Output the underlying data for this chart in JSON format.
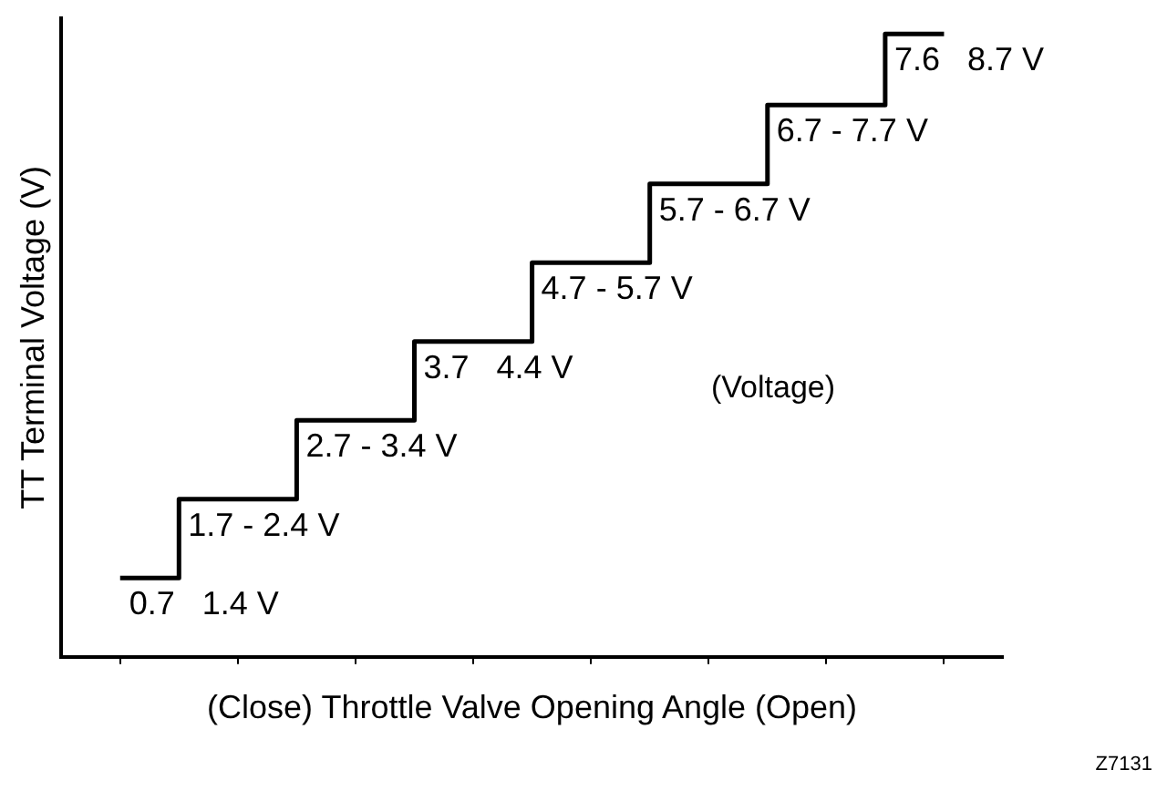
{
  "chart_data": {
    "type": "step",
    "ylim": [
      -0.3,
      7.8
    ],
    "tick_labels": false,
    "categories": [
      null,
      null,
      null,
      null,
      null,
      null,
      null,
      null
    ],
    "values": [
      0.7,
      1.7,
      2.7,
      3.7,
      4.7,
      5.7,
      6.7,
      7.6
    ],
    "value_labels": [
      "0.7   1.4 V",
      "1.7 - 2.4 V",
      "2.7 - 3.4 V",
      "3.7   4.4 V",
      "4.7 - 5.7 V",
      "5.7 - 6.7 V",
      "6.7 - 7.7 V",
      "7.6   8.7 V"
    ],
    "color": "#000000",
    "xlabel": "(Close) Throttle Valve Opening Angle (Open)",
    "ylabel": "TT Terminal Voltage (V)",
    "annotations": [
      "(Voltage)",
      "Z7131"
    ],
    "legend": false,
    "grid": false,
    "marker": "none"
  }
}
